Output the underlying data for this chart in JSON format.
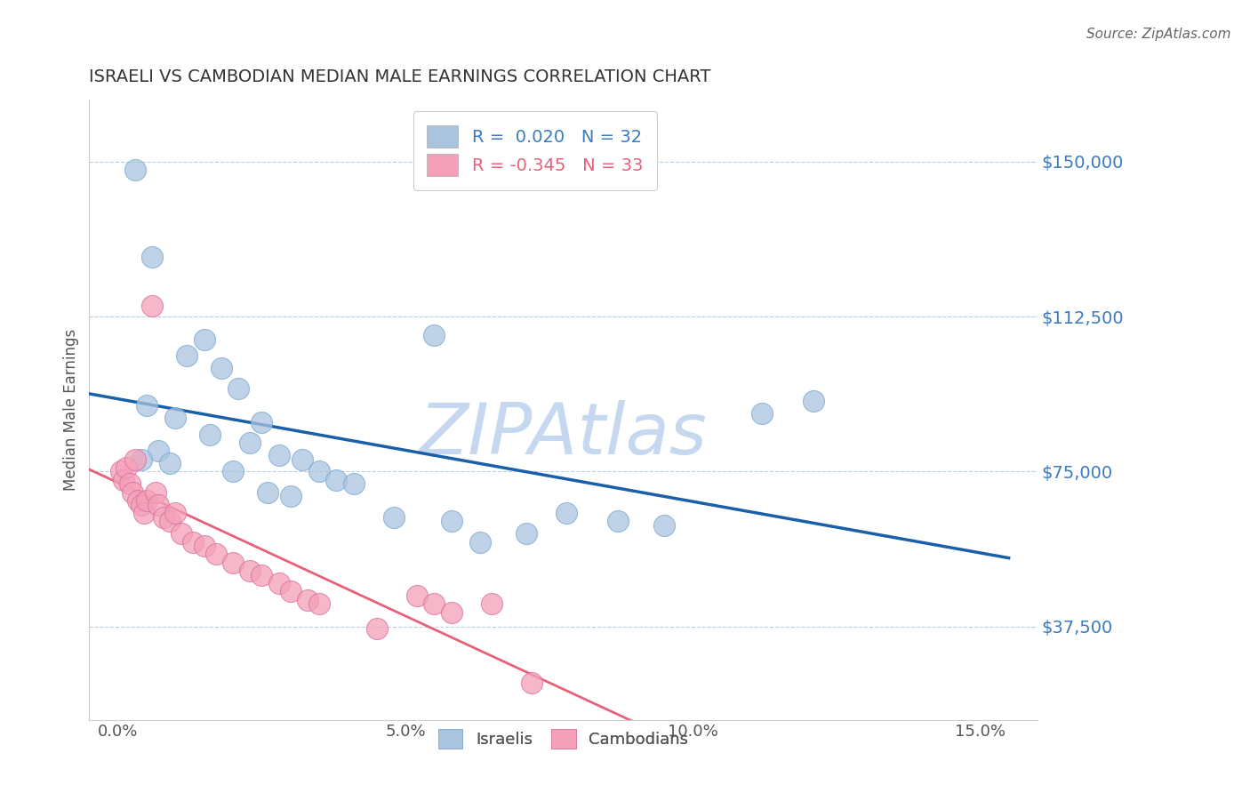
{
  "title": "ISRAELI VS CAMBODIAN MEDIAN MALE EARNINGS CORRELATION CHART",
  "source_text": "Source: ZipAtlas.com",
  "ylabel": "Median Male Earnings",
  "xlabel_ticks": [
    "0.0%",
    "5.0%",
    "10.0%",
    "15.0%"
  ],
  "xlabel_vals": [
    0.0,
    5.0,
    10.0,
    15.0
  ],
  "ytick_labels": [
    "$150,000",
    "$112,500",
    "$75,000",
    "$37,500"
  ],
  "ytick_vals": [
    150000,
    112500,
    75000,
    37500
  ],
  "xlim": [
    -0.5,
    16.0
  ],
  "ylim": [
    15000,
    165000
  ],
  "israeli_R": "0.020",
  "israeli_N": "32",
  "cambodian_R": "-0.345",
  "cambodian_N": "33",
  "israeli_color": "#aac4e0",
  "cambodian_color": "#f4a0b8",
  "israeli_line_color": "#1a5fa8",
  "cambodian_line_color": "#e8607a",
  "watermark": "ZIPAtlas",
  "watermark_color": "#c5d8ef",
  "israeli_points": [
    [
      0.3,
      148000
    ],
    [
      0.6,
      127000
    ],
    [
      1.2,
      103000
    ],
    [
      1.5,
      107000
    ],
    [
      1.8,
      100000
    ],
    [
      2.1,
      95000
    ],
    [
      0.5,
      91000
    ],
    [
      1.0,
      88000
    ],
    [
      2.5,
      87000
    ],
    [
      1.6,
      84000
    ],
    [
      2.3,
      82000
    ],
    [
      0.7,
      80000
    ],
    [
      2.8,
      79000
    ],
    [
      0.4,
      78000
    ],
    [
      0.9,
      77000
    ],
    [
      3.2,
      78000
    ],
    [
      2.0,
      75000
    ],
    [
      3.5,
      75000
    ],
    [
      3.8,
      73000
    ],
    [
      4.1,
      72000
    ],
    [
      2.6,
      70000
    ],
    [
      3.0,
      69000
    ],
    [
      4.8,
      64000
    ],
    [
      5.5,
      108000
    ],
    [
      5.8,
      63000
    ],
    [
      6.3,
      58000
    ],
    [
      7.1,
      60000
    ],
    [
      7.8,
      65000
    ],
    [
      8.7,
      63000
    ],
    [
      9.5,
      62000
    ],
    [
      11.2,
      89000
    ],
    [
      12.1,
      92000
    ]
  ],
  "cambodian_points": [
    [
      0.05,
      75000
    ],
    [
      0.1,
      73000
    ],
    [
      0.15,
      76000
    ],
    [
      0.2,
      72000
    ],
    [
      0.25,
      70000
    ],
    [
      0.3,
      78000
    ],
    [
      0.35,
      68000
    ],
    [
      0.4,
      67000
    ],
    [
      0.45,
      65000
    ],
    [
      0.5,
      68000
    ],
    [
      0.6,
      115000
    ],
    [
      0.65,
      70000
    ],
    [
      0.7,
      67000
    ],
    [
      0.8,
      64000
    ],
    [
      0.9,
      63000
    ],
    [
      1.0,
      65000
    ],
    [
      1.1,
      60000
    ],
    [
      1.3,
      58000
    ],
    [
      1.5,
      57000
    ],
    [
      1.7,
      55000
    ],
    [
      2.0,
      53000
    ],
    [
      2.3,
      51000
    ],
    [
      2.5,
      50000
    ],
    [
      2.8,
      48000
    ],
    [
      3.0,
      46000
    ],
    [
      3.3,
      44000
    ],
    [
      3.5,
      43000
    ],
    [
      4.5,
      37000
    ],
    [
      5.2,
      45000
    ],
    [
      5.5,
      43000
    ],
    [
      5.8,
      41000
    ],
    [
      6.5,
      43000
    ],
    [
      7.2,
      24000
    ]
  ]
}
